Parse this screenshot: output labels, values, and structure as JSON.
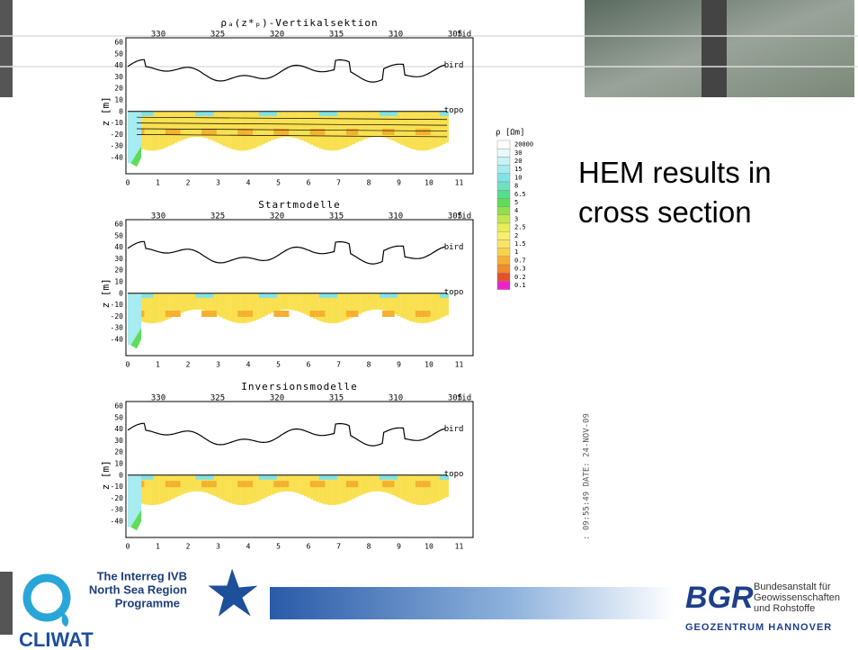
{
  "slide": {
    "heading": "HEM results in cross section"
  },
  "panels": [
    {
      "title": "ρₐ(z*ₚ)-Vertikalsektion",
      "fid_label": "fid",
      "fid_ticks": [
        "330",
        "325",
        "320",
        "315",
        "310",
        "305"
      ],
      "x_ticks": [
        "0",
        "1",
        "2",
        "3",
        "4",
        "5",
        "6",
        "7",
        "8",
        "9",
        "10",
        "11"
      ],
      "y_ticks": [
        "60",
        "50",
        "40",
        "30",
        "20",
        "10",
        "0",
        "-10",
        "-20",
        "-30",
        "-40"
      ],
      "y_label": "z [m]",
      "curve_labels": [
        "bird",
        "topo"
      ]
    },
    {
      "title": "Startmodelle",
      "fid_label": "fid",
      "fid_ticks": [
        "330",
        "325",
        "320",
        "315",
        "310",
        "305"
      ],
      "x_ticks": [
        "0",
        "1",
        "2",
        "3",
        "4",
        "5",
        "6",
        "7",
        "8",
        "9",
        "10",
        "11"
      ],
      "y_ticks": [
        "60",
        "50",
        "40",
        "30",
        "20",
        "10",
        "0",
        "-10",
        "-20",
        "-30",
        "-40"
      ],
      "y_label": "z [m]",
      "curve_labels": [
        "bird",
        "topo"
      ]
    },
    {
      "title": "Inversionsmodelle",
      "fid_label": "fid",
      "fid_ticks": [
        "330",
        "325",
        "320",
        "315",
        "310",
        "305"
      ],
      "x_ticks": [
        "0",
        "1",
        "2",
        "3",
        "4",
        "5",
        "6",
        "7",
        "8",
        "9",
        "10",
        "11"
      ],
      "y_ticks": [
        "60",
        "50",
        "40",
        "30",
        "20",
        "10",
        "0",
        "-10",
        "-20",
        "-30",
        "-40"
      ],
      "y_label": "z [m]",
      "curve_labels": [
        "bird",
        "topo"
      ]
    }
  ],
  "legend": {
    "title": "ρ [Ωm]",
    "levels": [
      "20000",
      "30",
      "20",
      "15",
      "10",
      "8",
      "6.5",
      "5",
      "4",
      "3",
      "2.5",
      "2",
      "1.5",
      "1",
      "0.7",
      "0.3",
      "0.2",
      "0.1"
    ],
    "colors": [
      "#ffffff",
      "#e8fbfb",
      "#c8f3f5",
      "#a6ecf0",
      "#7fe3e8",
      "#6fe0c0",
      "#55dd90",
      "#5fdc5a",
      "#8fe04a",
      "#c4e84a",
      "#e8ee55",
      "#f8f06a",
      "#fbe36a",
      "#f9d24a",
      "#f5b030",
      "#f08a2a",
      "#e8502a",
      "#ee22cc"
    ]
  },
  "timestamp": ": 09:55:49 DATE: 24-NOV-09",
  "logos": {
    "interreg": [
      "The Interreg IVB",
      "North Sea Region",
      "Programme"
    ],
    "cliwat": "CLIWAT",
    "bgr": "BGR",
    "bgr_name": [
      "Bundesanstalt für",
      "Geowissenschaften",
      "und Rohstoffe"
    ],
    "geozentrum": "GEOZENTRUM HANNOVER"
  }
}
